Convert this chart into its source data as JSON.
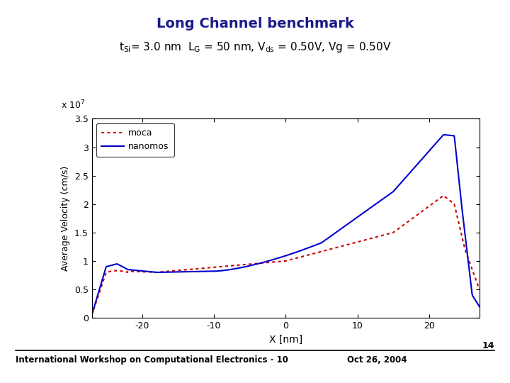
{
  "title": "Long Channel benchmark",
  "subtitle_parts": [
    {
      "text": "t",
      "style": "normal"
    },
    {
      "text": "Si",
      "style": "sub"
    },
    {
      "text": "= 3.0 nm  L",
      "style": "normal"
    },
    {
      "text": "G",
      "style": "sub"
    },
    {
      "text": " = 50 nm, V",
      "style": "normal"
    },
    {
      "text": "ds",
      "style": "sub"
    },
    {
      "text": " = 0.50V, Vg = 0.50V",
      "style": "normal"
    }
  ],
  "xlabel": "X [nm]",
  "ylabel": "Average Velocity (cm/s)",
  "xlim": [
    -27,
    27
  ],
  "ylim": [
    0,
    3.5
  ],
  "footer_left": "International Workshop on Computational Electronics - 10",
  "footer_right": "Oct 26, 2004",
  "footer_num": "14",
  "title_color": "#1a1a8c",
  "legend_labels": [
    "moca",
    "nanomos"
  ],
  "moca_color": "#cc0000",
  "nanomos_color": "#0000cc",
  "background_color": "#ffffff",
  "yticks": [
    0,
    0.5,
    1.0,
    1.5,
    2.0,
    2.5,
    3.0,
    3.5
  ],
  "xticks": [
    -20,
    -10,
    0,
    10,
    20
  ]
}
